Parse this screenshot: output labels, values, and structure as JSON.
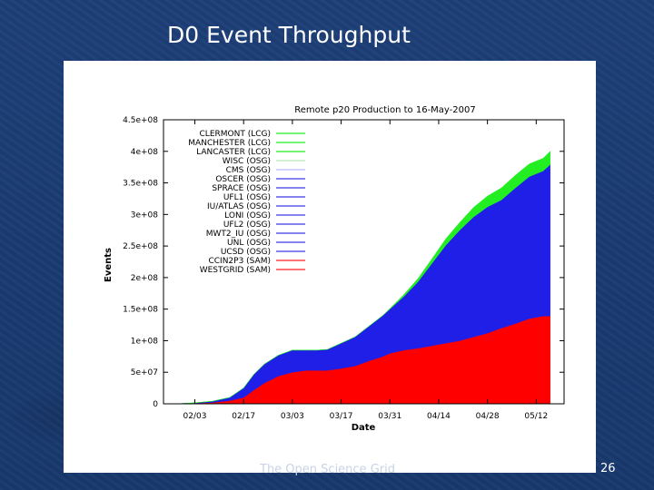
{
  "slide": {
    "title": "D0 Event Throughput",
    "footer": "The Open Science Grid",
    "page_number": "26"
  },
  "colors": {
    "red": "#ff0000",
    "blue": "#1f1fe8",
    "green": "#22ee22",
    "axis": "#000000"
  },
  "chart_data": {
    "type": "area",
    "title": "Remote p20 Production to 16-May-2007",
    "xlabel": "Date",
    "ylabel": "Events",
    "ylim": [
      0,
      450000000
    ],
    "xlim": [
      -9,
      106
    ],
    "x_units": "days since 02/03/2007",
    "yticks": [
      0,
      50000000,
      100000000,
      150000000,
      200000000,
      250000000,
      300000000,
      350000000,
      400000000,
      450000000
    ],
    "ytick_labels": [
      "0",
      "5e+07",
      "1e+08",
      "1.5e+08",
      "2e+08",
      "2.5e+08",
      "3e+08",
      "3.5e+08",
      "4e+08",
      "4.5e+08"
    ],
    "xticks": [
      0,
      14,
      28,
      42,
      56,
      70,
      84,
      98
    ],
    "xtick_labels": [
      "02/03",
      "02/17",
      "03/03",
      "03/17",
      "03/31",
      "04/14",
      "04/28",
      "05/12"
    ],
    "legend_position": "top-left",
    "legend": [
      {
        "label": "CLERMONT (LCG)",
        "color": "#22ee22"
      },
      {
        "label": "MANCHESTER (LCG)",
        "color": "#22ee22"
      },
      {
        "label": "LANCASTER (LCG)",
        "color": "#22ee22"
      },
      {
        "label": "WISC (OSG)",
        "color": "#b8e8b8"
      },
      {
        "label": "CMS (OSG)",
        "color": "#b8b8ff"
      },
      {
        "label": "OSCER (OSG)",
        "color": "#3a3ae0"
      },
      {
        "label": "SPRACE (OSG)",
        "color": "#3a3ae0"
      },
      {
        "label": "UFL1 (OSG)",
        "color": "#3a3ae0"
      },
      {
        "label": "IU/ATLAS (OSG)",
        "color": "#3a3ae0"
      },
      {
        "label": "LONI (OSG)",
        "color": "#3a3ae0"
      },
      {
        "label": "UFL2 (OSG)",
        "color": "#3a3ae0"
      },
      {
        "label": "MWT2_IU (OSG)",
        "color": "#3a3ae0"
      },
      {
        "label": "UNL (OSG)",
        "color": "#3a3ae0"
      },
      {
        "label": "UCSD (OSG)",
        "color": "#3a3ae0"
      },
      {
        "label": "CCIN2P3 (SAM)",
        "color": "#ff2020"
      },
      {
        "label": "WESTGRID (SAM)",
        "color": "#ff2020"
      }
    ],
    "x": [
      -5,
      0,
      5,
      10,
      14,
      17,
      20,
      24,
      28,
      32,
      35,
      38,
      42,
      46,
      50,
      54,
      56,
      60,
      64,
      68,
      72,
      76,
      80,
      84,
      88,
      92,
      96,
      100,
      102
    ],
    "series": [
      {
        "name": "SAM (CCIN2P3 + WESTGRID)",
        "color": "#ff0000",
        "values": [
          0,
          1000000,
          2000000,
          5000000,
          10000000,
          22000000,
          33000000,
          44000000,
          50000000,
          53000000,
          53000000,
          53000000,
          56000000,
          60000000,
          68000000,
          75000000,
          80000000,
          85000000,
          88000000,
          92000000,
          96000000,
          100000000,
          106000000,
          112000000,
          120000000,
          127000000,
          135000000,
          139000000,
          139000000
        ]
      },
      {
        "name": "OSG",
        "color": "#1f1fe8",
        "values": [
          0,
          500000,
          2000000,
          5000000,
          15000000,
          25000000,
          30000000,
          33000000,
          35000000,
          32000000,
          32000000,
          33000000,
          40000000,
          46000000,
          55000000,
          65000000,
          70000000,
          85000000,
          105000000,
          130000000,
          155000000,
          175000000,
          190000000,
          200000000,
          203000000,
          215000000,
          225000000,
          230000000,
          240000000
        ]
      },
      {
        "name": "LCG",
        "color": "#22ee22",
        "values": [
          0,
          0,
          0,
          0,
          0,
          0,
          0,
          0,
          0,
          0,
          0,
          0,
          0,
          0,
          0,
          0,
          1000000,
          3000000,
          5000000,
          7000000,
          10000000,
          12000000,
          15000000,
          17000000,
          19000000,
          20000000,
          20000000,
          20000000,
          21000000
        ]
      }
    ]
  }
}
